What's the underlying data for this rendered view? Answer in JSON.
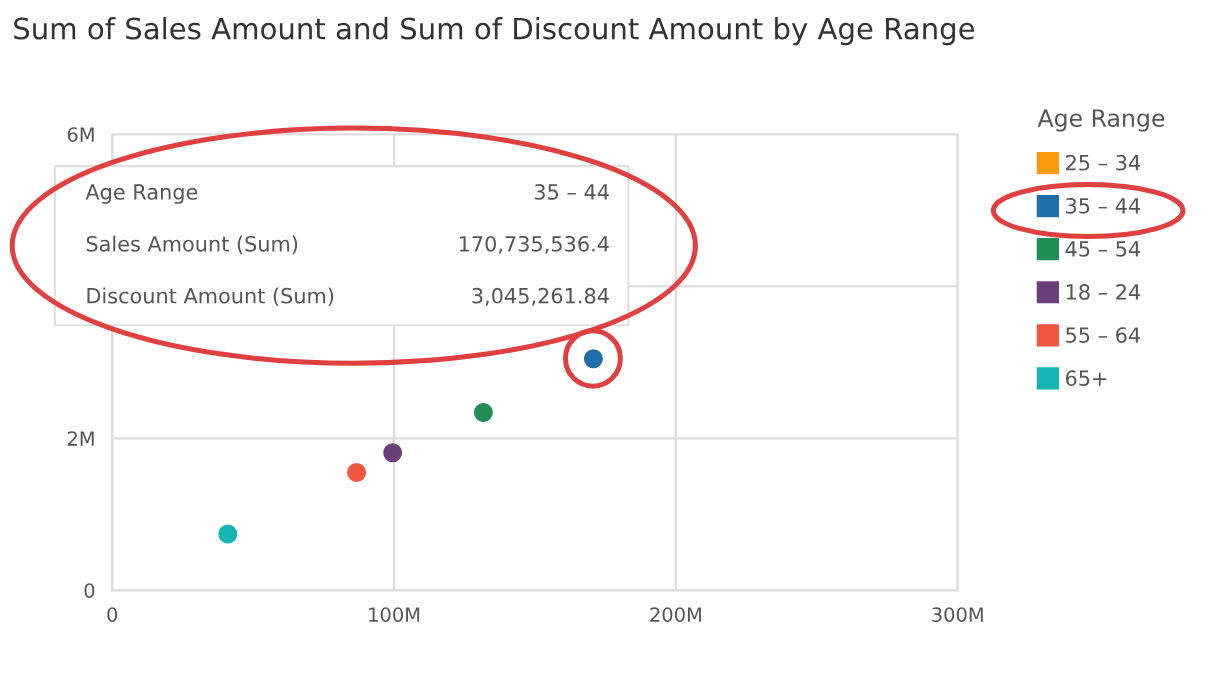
{
  "chart_data": {
    "type": "scatter",
    "title": "Sum of Sales Amount and Sum of Discount Amount by Age Range",
    "legend_title": "Age Range",
    "legend": "right",
    "grid": true,
    "marker": "circle",
    "xlim": [
      0,
      300000000
    ],
    "xticks": [
      {
        "value": 0,
        "label": "0"
      },
      {
        "value": 100000000,
        "label": "100M"
      },
      {
        "value": 200000000,
        "label": "200M"
      },
      {
        "value": 300000000,
        "label": "300M"
      }
    ],
    "ylim": [
      0,
      6000000
    ],
    "yticks": [
      {
        "value": 0,
        "label": "0"
      },
      {
        "value": 2000000,
        "label": "2M"
      },
      {
        "value": 4000000,
        "label": null
      },
      {
        "value": 6000000,
        "label": "6M"
      }
    ],
    "series": [
      {
        "name": "25 – 34",
        "color": "#fd9d0e",
        "x": [
          null
        ],
        "values": [
          null
        ]
      },
      {
        "name": "35 – 44",
        "color": "#1f6ea8",
        "x": [
          170735536.4
        ],
        "values": [
          3045261.84
        ]
      },
      {
        "name": "45 – 54",
        "color": "#1f8f55",
        "x": [
          131700000
        ],
        "values": [
          2340000
        ]
      },
      {
        "name": "18 – 24",
        "color": "#6b3f7b",
        "x": [
          99500000
        ],
        "values": [
          1810000
        ]
      },
      {
        "name": "55 – 64",
        "color": "#f0573f",
        "x": [
          86700000
        ],
        "values": [
          1550000
        ]
      },
      {
        "name": "65+",
        "color": "#15b5b5",
        "x": [
          41000000
        ],
        "values": [
          740000
        ]
      }
    ],
    "annotations": [
      "Age Range",
      "35 – 44",
      "Sales Amount (Sum)",
      "170,735,536.4",
      "Discount Amount (Sum)",
      "3,045,261.84"
    ]
  }
}
